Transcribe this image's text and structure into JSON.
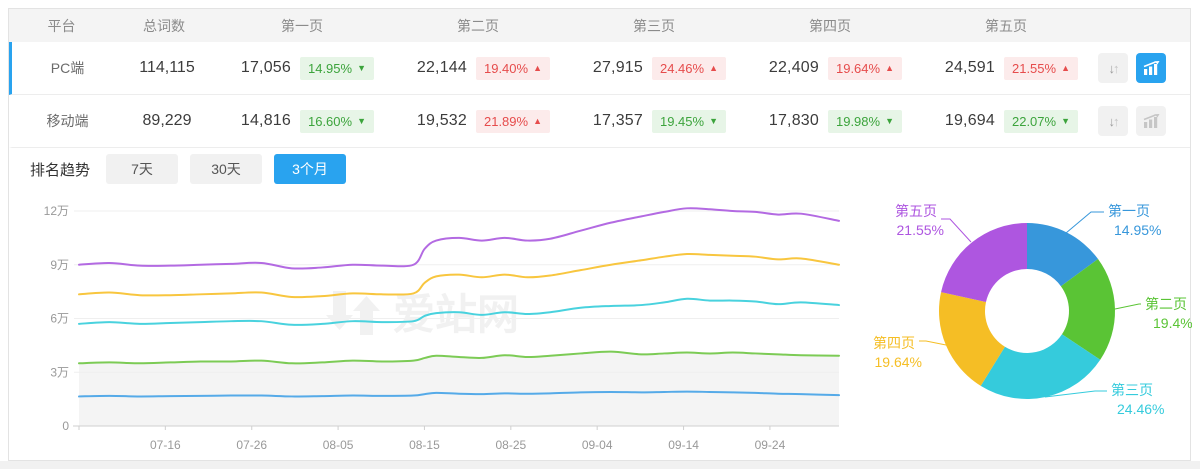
{
  "table": {
    "headers": [
      "平台",
      "总词数",
      "第一页",
      "第二页",
      "第三页",
      "第四页",
      "第五页"
    ],
    "rows": [
      {
        "platform": "PC端",
        "total": "114,115",
        "active": true,
        "pages": [
          {
            "value": "17,056",
            "pct": "14.95%",
            "trend": "down"
          },
          {
            "value": "22,144",
            "pct": "19.40%",
            "trend": "up"
          },
          {
            "value": "27,915",
            "pct": "24.46%",
            "trend": "up"
          },
          {
            "value": "22,409",
            "pct": "19.64%",
            "trend": "up"
          },
          {
            "value": "24,591",
            "pct": "21.55%",
            "trend": "up"
          }
        ]
      },
      {
        "platform": "移动端",
        "total": "89,229",
        "active": false,
        "pages": [
          {
            "value": "14,816",
            "pct": "16.60%",
            "trend": "down"
          },
          {
            "value": "19,532",
            "pct": "21.89%",
            "trend": "up"
          },
          {
            "value": "17,357",
            "pct": "19.45%",
            "trend": "down"
          },
          {
            "value": "17,830",
            "pct": "19.98%",
            "trend": "down"
          },
          {
            "value": "19,694",
            "pct": "22.07%",
            "trend": "down"
          }
        ]
      }
    ]
  },
  "icons": {
    "sort_down": "↓",
    "sort_up": "↑",
    "trend_up": "▲",
    "trend_down": "▼"
  },
  "trend": {
    "label": "排名趋势",
    "tabs": [
      {
        "label": "7天",
        "active": false
      },
      {
        "label": "30天",
        "active": false
      },
      {
        "label": "3个月",
        "active": true
      }
    ]
  },
  "watermark": {
    "text": "爱站网"
  },
  "colors": {
    "accent": "#29a3ef",
    "badge_up": "#e64c4c",
    "badge_down": "#3ca43c"
  },
  "chart_data": [
    {
      "type": "line",
      "stacked_cumulative": true,
      "unit": "万",
      "ylim": [
        0,
        120000
      ],
      "y_ticks": [
        "0",
        "3万",
        "6万",
        "9万",
        "12万"
      ],
      "x_ticks": [
        {
          "label": "07-16",
          "f": 0.1136
        },
        {
          "label": "07-26",
          "f": 0.2273
        },
        {
          "label": "08-05",
          "f": 0.3409
        },
        {
          "label": "08-15",
          "f": 0.4545
        },
        {
          "label": "08-25",
          "f": 0.5682
        },
        {
          "label": "09-04",
          "f": 0.6818
        },
        {
          "label": "09-14",
          "f": 0.7955
        },
        {
          "label": "09-24",
          "f": 0.9091
        }
      ],
      "x_f": [
        0,
        0.04,
        0.08,
        0.12,
        0.16,
        0.2,
        0.24,
        0.28,
        0.32,
        0.36,
        0.4,
        0.44,
        0.455,
        0.47,
        0.5,
        0.53,
        0.56,
        0.59,
        0.62,
        0.66,
        0.7,
        0.74,
        0.77,
        0.8,
        0.83,
        0.86,
        0.89,
        0.92,
        0.95,
        1.0
      ],
      "series": [
        {
          "name": "第一页",
          "color": "#55aae8",
          "values": [
            1.65,
            1.68,
            1.65,
            1.67,
            1.68,
            1.7,
            1.7,
            1.65,
            1.67,
            1.7,
            1.68,
            1.7,
            1.78,
            1.85,
            1.8,
            1.78,
            1.82,
            1.8,
            1.82,
            1.88,
            1.9,
            1.88,
            1.9,
            1.92,
            1.9,
            1.88,
            1.85,
            1.8,
            1.78,
            1.72
          ]
        },
        {
          "name": "第二页",
          "color": "#7ccb55",
          "area_fill": "#f4f4f4",
          "values": [
            3.5,
            3.55,
            3.5,
            3.55,
            3.6,
            3.6,
            3.65,
            3.5,
            3.55,
            3.65,
            3.6,
            3.65,
            3.8,
            3.92,
            3.85,
            3.8,
            3.95,
            3.85,
            3.92,
            4.05,
            4.15,
            4.0,
            4.05,
            4.1,
            4.05,
            4.1,
            4.05,
            4.0,
            3.95,
            3.92
          ]
        },
        {
          "name": "第三页",
          "color": "#49d2de",
          "values": [
            5.7,
            5.8,
            5.7,
            5.75,
            5.8,
            5.85,
            5.85,
            5.65,
            5.7,
            5.85,
            5.8,
            5.85,
            6.15,
            6.3,
            6.35,
            6.2,
            6.35,
            6.25,
            6.35,
            6.6,
            6.7,
            6.75,
            6.9,
            7.1,
            7.0,
            7.0,
            6.95,
            6.8,
            6.9,
            6.75
          ]
        },
        {
          "name": "第四页",
          "color": "#f8c63f",
          "values": [
            7.35,
            7.45,
            7.3,
            7.3,
            7.35,
            7.4,
            7.45,
            7.2,
            7.25,
            7.4,
            7.35,
            7.4,
            8.0,
            8.35,
            8.45,
            8.3,
            8.45,
            8.3,
            8.4,
            8.7,
            9.0,
            9.25,
            9.45,
            9.6,
            9.55,
            9.5,
            9.45,
            9.3,
            9.35,
            9.0
          ]
        },
        {
          "name": "第五页",
          "color": "#b36ae2",
          "values": [
            9.0,
            9.1,
            8.95,
            8.95,
            9.0,
            9.05,
            9.1,
            8.8,
            8.85,
            9.0,
            8.95,
            9.0,
            9.9,
            10.35,
            10.5,
            10.35,
            10.5,
            10.35,
            10.45,
            10.9,
            11.35,
            11.7,
            11.95,
            12.15,
            12.1,
            12.0,
            11.95,
            11.8,
            11.85,
            11.45
          ]
        }
      ]
    },
    {
      "type": "pie",
      "donut": true,
      "labels": [
        "第一页",
        "第二页",
        "第三页",
        "第四页",
        "第五页"
      ],
      "values": [
        14.95,
        19.4,
        24.46,
        19.64,
        21.55
      ],
      "pct_labels": [
        "14.95%",
        "19.4%",
        "24.46%",
        "19.64%",
        "21.55%"
      ],
      "colors": [
        "#3797db",
        "#5ac435",
        "#35cbdc",
        "#f5be25",
        "#ae56e0"
      ],
      "start_angle_deg": -90,
      "clockwise": true,
      "legend": "callout-labels"
    }
  ]
}
